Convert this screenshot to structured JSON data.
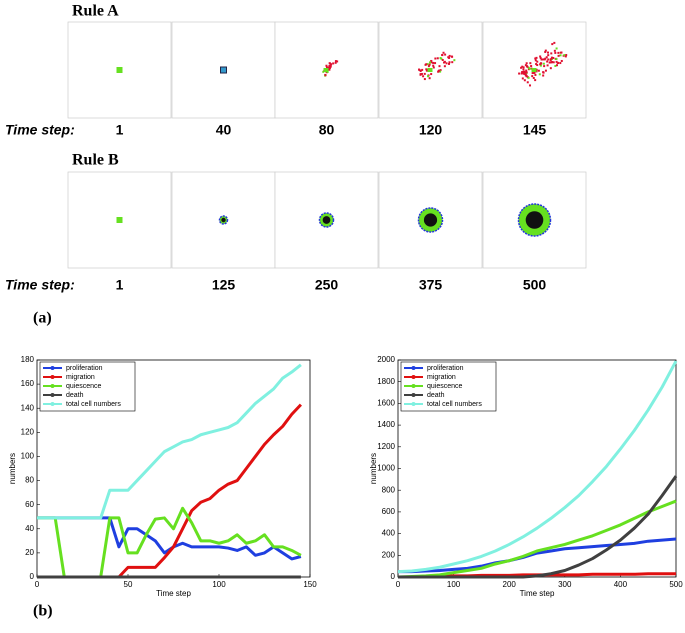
{
  "panel_a": {
    "label": "(a)",
    "rows": [
      {
        "title": "Rule A",
        "step_label": "Time step:",
        "steps": [
          1,
          40,
          80,
          120,
          145
        ]
      },
      {
        "title": "Rule B",
        "step_label": "Time step:",
        "steps": [
          1,
          125,
          250,
          375,
          500
        ]
      }
    ]
  },
  "panel_b_label": "(b)",
  "chart_data": [
    {
      "type": "line",
      "xlabel": "Time step",
      "ylabel": "numbers",
      "xlim": [
        0,
        150
      ],
      "ylim": [
        0,
        180
      ],
      "xticks": [
        0,
        50,
        100,
        150
      ],
      "yticks": [
        0,
        20,
        40,
        60,
        80,
        100,
        120,
        140,
        160,
        180
      ],
      "legend": "upper-left",
      "x": [
        0,
        5,
        10,
        15,
        20,
        25,
        30,
        35,
        40,
        45,
        50,
        55,
        60,
        65,
        70,
        75,
        80,
        85,
        90,
        95,
        100,
        105,
        110,
        115,
        120,
        125,
        130,
        135,
        140,
        145
      ],
      "series": [
        {
          "name": "proliferation",
          "color": "#1f3fe0",
          "values": [
            49,
            49,
            49,
            49,
            49,
            49,
            49,
            49,
            49,
            25,
            40,
            40,
            35,
            30,
            20,
            25,
            28,
            25,
            25,
            25,
            25,
            24,
            22,
            25,
            18,
            20,
            25,
            20,
            15,
            17
          ]
        },
        {
          "name": "migration",
          "color": "#e01010",
          "values": [
            0,
            0,
            0,
            0,
            0,
            0,
            0,
            0,
            0,
            0,
            8,
            8,
            8,
            8,
            16,
            25,
            40,
            55,
            62,
            65,
            72,
            77,
            80,
            90,
            100,
            110,
            118,
            125,
            135,
            143
          ]
        },
        {
          "name": "quiescence",
          "color": "#66e020",
          "values": [
            49,
            49,
            49,
            0,
            0,
            0,
            0,
            0,
            49,
            49,
            20,
            20,
            35,
            48,
            49,
            40,
            57,
            45,
            30,
            30,
            28,
            30,
            35,
            28,
            30,
            35,
            25,
            25,
            22,
            18
          ]
        },
        {
          "name": "death",
          "color": "#404040",
          "values": [
            0,
            0,
            0,
            0,
            0,
            0,
            0,
            0,
            0,
            0,
            0,
            0,
            0,
            0,
            0,
            0,
            0,
            0,
            0,
            0,
            0,
            0,
            0,
            0,
            0,
            0,
            0,
            0,
            0,
            0
          ]
        },
        {
          "name": "total cell numbers",
          "color": "#80f0e0",
          "values": [
            49,
            49,
            49,
            49,
            49,
            49,
            49,
            49,
            72,
            72,
            72,
            80,
            88,
            96,
            104,
            108,
            112,
            114,
            118,
            120,
            122,
            124,
            128,
            136,
            144,
            150,
            156,
            165,
            170,
            176
          ]
        }
      ]
    },
    {
      "type": "line",
      "xlabel": "Time step",
      "ylabel": "numbers",
      "xlim": [
        0,
        500
      ],
      "ylim": [
        0,
        2000
      ],
      "xticks": [
        0,
        100,
        200,
        300,
        400,
        500
      ],
      "yticks": [
        0,
        200,
        400,
        600,
        800,
        1000,
        1200,
        1400,
        1600,
        1800,
        2000
      ],
      "legend": "upper-left",
      "x": [
        0,
        25,
        50,
        75,
        100,
        125,
        150,
        175,
        200,
        225,
        250,
        275,
        300,
        325,
        350,
        375,
        400,
        425,
        450,
        475,
        500
      ],
      "series": [
        {
          "name": "proliferation",
          "color": "#1f3fe0",
          "values": [
            50,
            50,
            55,
            60,
            70,
            80,
            100,
            130,
            150,
            180,
            220,
            240,
            260,
            270,
            280,
            290,
            300,
            310,
            330,
            340,
            350
          ]
        },
        {
          "name": "migration",
          "color": "#e01010",
          "values": [
            0,
            0,
            5,
            5,
            10,
            10,
            15,
            15,
            15,
            20,
            20,
            20,
            20,
            20,
            25,
            25,
            25,
            25,
            30,
            30,
            30
          ]
        },
        {
          "name": "quiescence",
          "color": "#66e020",
          "values": [
            0,
            5,
            10,
            20,
            40,
            60,
            80,
            120,
            150,
            190,
            240,
            270,
            300,
            340,
            380,
            430,
            480,
            540,
            600,
            650,
            700
          ]
        },
        {
          "name": "death",
          "color": "#404040",
          "values": [
            0,
            0,
            0,
            0,
            0,
            0,
            0,
            0,
            0,
            0,
            10,
            30,
            60,
            110,
            170,
            250,
            340,
            450,
            580,
            750,
            930
          ]
        },
        {
          "name": "total cell numbers",
          "color": "#80f0e0",
          "values": [
            50,
            55,
            70,
            90,
            120,
            150,
            190,
            240,
            300,
            370,
            450,
            540,
            640,
            750,
            880,
            1020,
            1180,
            1350,
            1540,
            1750,
            1990
          ]
        }
      ]
    }
  ]
}
